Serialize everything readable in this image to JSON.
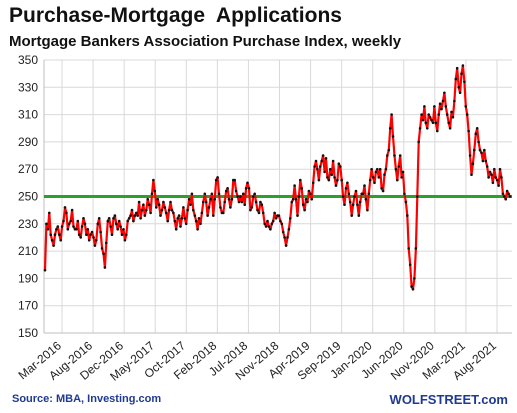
{
  "chart_data": {
    "type": "line",
    "title": "Purchase-Mortgage  Applications",
    "subtitle": "Mortgage Bankers Association Purchase Index, weekly",
    "source": "Source: MBA, Investing.com",
    "watermark": "WOLFSTREET.com",
    "ylim": [
      150,
      350
    ],
    "y_ticks": [
      "350",
      "330",
      "310",
      "290",
      "270",
      "250",
      "230",
      "210",
      "190",
      "170",
      "150"
    ],
    "x_ticks": [
      "Mar-2016",
      "Aug-2016",
      "Dec-2016",
      "May-2017",
      "Oct-2017",
      "Feb-2018",
      "Jul-2018",
      "Nov-2018",
      "Apr-2019",
      "Sep-2019",
      "Jan-2020",
      "Jun-2020",
      "Nov-2020",
      "Mar-2021",
      "Aug-2021"
    ],
    "grid": true,
    "reference_line": {
      "value": 250,
      "color": "#2ca02c"
    },
    "series": [
      {
        "color": "#ff0000",
        "marker_color": "#111111",
        "values": [
          196,
          230,
          226,
          238,
          222,
          218,
          214,
          222,
          226,
          228,
          222,
          218,
          228,
          232,
          242,
          238,
          226,
          230,
          232,
          240,
          228,
          226,
          226,
          232,
          222,
          220,
          228,
          234,
          230,
          222,
          226,
          218,
          222,
          224,
          220,
          214,
          218,
          230,
          234,
          224,
          212,
          208,
          198,
          216,
          232,
          234,
          228,
          222,
          234,
          236,
          230,
          226,
          232,
          228,
          222,
          226,
          218,
          222,
          232,
          234,
          236,
          240,
          232,
          236,
          238,
          236,
          246,
          234,
          240,
          244,
          236,
          240,
          248,
          244,
          238,
          252,
          262,
          254,
          242,
          248,
          244,
          236,
          240,
          246,
          242,
          238,
          232,
          240,
          246,
          240,
          238,
          232,
          226,
          234,
          236,
          228,
          234,
          242,
          234,
          230,
          240,
          248,
          244,
          252,
          240,
          236,
          232,
          226,
          234,
          230,
          238,
          246,
          252,
          246,
          236,
          242,
          248,
          252,
          236,
          248,
          262,
          264,
          252,
          242,
          238,
          238,
          246,
          254,
          256,
          248,
          242,
          248,
          262,
          262,
          254,
          250,
          246,
          250,
          246,
          252,
          244,
          256,
          260,
          256,
          240,
          242,
          250,
          252,
          246,
          240,
          238,
          246,
          244,
          238,
          230,
          228,
          232,
          228,
          226,
          230,
          232,
          238,
          234,
          236,
          236,
          232,
          230,
          224,
          220,
          214,
          220,
          226,
          234,
          246,
          248,
          258,
          248,
          236,
          250,
          262,
          256,
          244,
          240,
          248,
          246,
          254,
          252,
          248,
          260,
          272,
          276,
          270,
          262,
          272,
          276,
          280,
          268,
          278,
          264,
          262,
          270,
          266,
          276,
          264,
          258,
          262,
          274,
          272,
          262,
          250,
          244,
          256,
          260,
          252,
          246,
          236,
          244,
          250,
          254,
          244,
          236,
          246,
          252,
          252,
          258,
          248,
          240,
          252,
          262,
          270,
          264,
          260,
          268,
          270,
          264,
          270,
          256,
          254,
          266,
          270,
          280,
          284,
          300,
          310,
          294,
          280,
          270,
          262,
          272,
          280,
          264,
          268,
          252,
          246,
          236,
          212,
          200,
          184,
          182,
          190,
          212,
          250,
          290,
          300,
          310,
          306,
          316,
          304,
          300,
          310,
          308,
          306,
          304,
          316,
          304,
          298,
          310,
          318,
          314,
          320,
          326,
          316,
          310,
          304,
          300,
          312,
          308,
          320,
          336,
          344,
          330,
          326,
          340,
          346,
          334,
          316,
          310,
          298,
          280,
          266,
          274,
          284,
          296,
          300,
          290,
          284,
          282,
          276,
          284,
          276,
          272,
          264,
          268,
          266,
          260,
          270,
          264,
          262,
          258,
          270,
          264,
          252,
          250,
          248,
          254,
          252,
          250
        ]
      }
    ]
  }
}
